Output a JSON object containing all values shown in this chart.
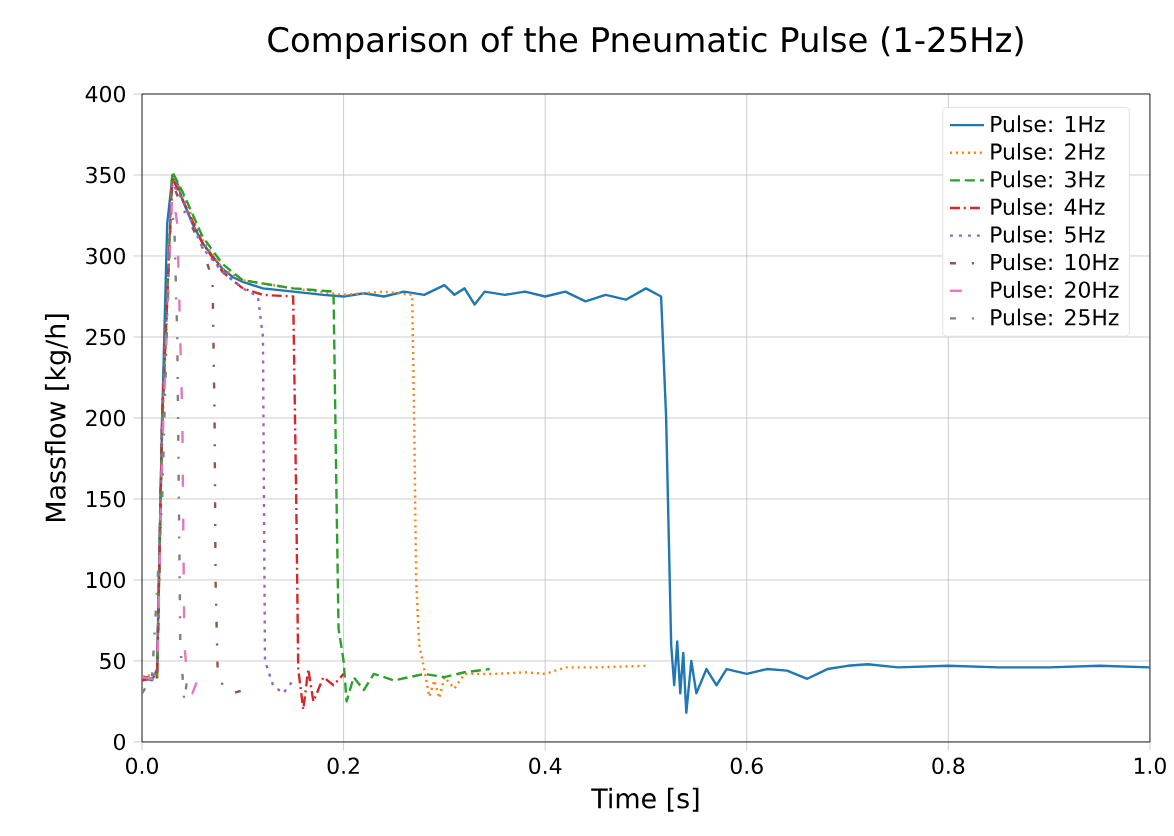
{
  "chart_data": {
    "type": "line",
    "title": "Comparison of the Pneumatic Pulse (1-25Hz)",
    "xlabel": "Time [s]",
    "ylabel": "Massflow [kg/h]",
    "xlim": [
      0,
      1
    ],
    "ylim": [
      0,
      400
    ],
    "xticks": [
      {
        "value": 0,
        "label": "0.0"
      },
      {
        "value": 0.2,
        "label": "0.2"
      },
      {
        "value": 0.4,
        "label": "0.4"
      },
      {
        "value": 0.6,
        "label": "0.6"
      },
      {
        "value": 0.8,
        "label": "0.8"
      },
      {
        "value": 1,
        "label": "1.0"
      }
    ],
    "yticks": [
      0,
      50,
      100,
      150,
      200,
      250,
      300,
      350,
      400
    ],
    "grid": true,
    "legend": "top right",
    "marker": "none",
    "series": [
      {
        "name": "Pulse: 1Hz",
        "color": "#1f77b4",
        "line_style": "solid",
        "x": [
          0,
          0.01,
          0.015,
          0.02,
          0.025,
          0.03,
          0.035,
          0.04,
          0.05,
          0.06,
          0.07,
          0.08,
          0.09,
          0.1,
          0.12,
          0.15,
          0.18,
          0.2,
          0.22,
          0.24,
          0.26,
          0.28,
          0.3,
          0.31,
          0.32,
          0.33,
          0.34,
          0.36,
          0.38,
          0.4,
          0.42,
          0.44,
          0.46,
          0.48,
          0.5,
          0.515,
          0.52,
          0.525,
          0.528,
          0.531,
          0.534,
          0.537,
          0.54,
          0.545,
          0.55,
          0.56,
          0.57,
          0.58,
          0.6,
          0.62,
          0.64,
          0.66,
          0.68,
          0.7,
          0.72,
          0.75,
          0.8,
          0.85,
          0.9,
          0.95,
          1.0
        ],
        "values": [
          40,
          38,
          45,
          200,
          320,
          348,
          345,
          335,
          320,
          308,
          300,
          292,
          287,
          284,
          280,
          278,
          276,
          275,
          277,
          275,
          278,
          276,
          282,
          276,
          280,
          270,
          278,
          276,
          278,
          275,
          278,
          272,
          276,
          273,
          280,
          275,
          200,
          60,
          35,
          62,
          30,
          55,
          18,
          50,
          30,
          45,
          35,
          45,
          42,
          45,
          44,
          39,
          45,
          47,
          48,
          46,
          47,
          46,
          46,
          47,
          46
        ]
      },
      {
        "name": "Pulse: 2Hz",
        "color": "#ff7f0e",
        "line_style": "dotted",
        "x": [
          0,
          0.015,
          0.02,
          0.03,
          0.04,
          0.06,
          0.08,
          0.1,
          0.15,
          0.2,
          0.24,
          0.268,
          0.27,
          0.272,
          0.275,
          0.28,
          0.285,
          0.29,
          0.295,
          0.3,
          0.31,
          0.32,
          0.35,
          0.38,
          0.4,
          0.42,
          0.45,
          0.5
        ],
        "values": [
          40,
          42,
          190,
          350,
          338,
          310,
          292,
          285,
          280,
          276,
          278,
          276,
          200,
          100,
          60,
          45,
          28,
          38,
          27,
          40,
          33,
          42,
          42,
          43,
          42,
          46,
          46,
          47
        ]
      },
      {
        "name": "Pulse: 3Hz",
        "color": "#2ca02c",
        "line_style": "dashed",
        "x": [
          0,
          0.015,
          0.02,
          0.03,
          0.04,
          0.06,
          0.08,
          0.1,
          0.15,
          0.19,
          0.193,
          0.195,
          0.2,
          0.203,
          0.21,
          0.22,
          0.23,
          0.25,
          0.28,
          0.3,
          0.32,
          0.345
        ],
        "values": [
          38,
          40,
          200,
          352,
          340,
          312,
          295,
          285,
          280,
          278,
          150,
          70,
          50,
          25,
          40,
          32,
          42,
          38,
          42,
          40,
          43,
          45
        ]
      },
      {
        "name": "Pulse: 4Hz",
        "color": "#d62728",
        "line_style": "dashdot",
        "x": [
          0,
          0.015,
          0.02,
          0.03,
          0.04,
          0.06,
          0.08,
          0.1,
          0.12,
          0.15,
          0.153,
          0.155,
          0.16,
          0.165,
          0.17,
          0.18,
          0.19,
          0.2
        ],
        "values": [
          38,
          40,
          200,
          348,
          335,
          308,
          290,
          280,
          276,
          275,
          150,
          45,
          20,
          45,
          25,
          40,
          35,
          42
        ]
      },
      {
        "name": "Pulse: 5Hz",
        "color": "#9467bd",
        "line_style": "loosely dotted",
        "x": [
          0,
          0.015,
          0.02,
          0.03,
          0.04,
          0.06,
          0.08,
          0.1,
          0.115,
          0.12,
          0.121,
          0.122,
          0.13,
          0.14,
          0.15
        ],
        "values": [
          40,
          42,
          200,
          345,
          335,
          305,
          290,
          280,
          275,
          250,
          150,
          50,
          35,
          30,
          38
        ]
      },
      {
        "name": "Pulse: 10Hz",
        "color": "#8c564b",
        "line_style": "loosely dashdotted",
        "x": [
          0,
          0.015,
          0.02,
          0.03,
          0.04,
          0.06,
          0.07,
          0.072,
          0.073,
          0.075,
          0.08,
          0.09,
          0.1
        ],
        "values": [
          40,
          40,
          200,
          345,
          330,
          305,
          285,
          200,
          100,
          45,
          35,
          30,
          32
        ]
      },
      {
        "name": "Pulse: 20Hz",
        "color": "#e377c2",
        "line_style": "loosely dashed",
        "x": [
          0,
          0.015,
          0.02,
          0.03,
          0.035,
          0.04,
          0.042,
          0.045,
          0.05,
          0.055
        ],
        "values": [
          40,
          38,
          180,
          340,
          320,
          200,
          60,
          40,
          30,
          38
        ]
      },
      {
        "name": "Pulse: 25Hz",
        "color": "#7f7f7f",
        "line_style": "loosely dashdotted",
        "x": [
          0,
          0.01,
          0.02,
          0.028,
          0.032,
          0.035,
          0.038,
          0.042,
          0.045
        ],
        "values": [
          30,
          40,
          150,
          330,
          320,
          250,
          60,
          25,
          40
        ]
      }
    ]
  }
}
